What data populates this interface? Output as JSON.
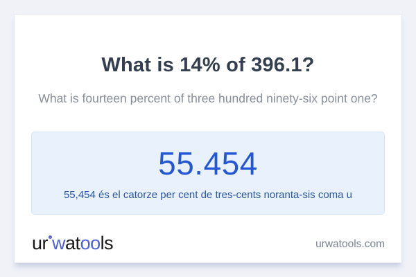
{
  "page": {
    "footer_domain": "urwatools.com"
  },
  "card": {
    "title": "What is 14% of 396.1?",
    "subtitle": "What is fourteen percent of three hundred ninety-six point one?",
    "result": {
      "value": "55.454",
      "description": "55,454 és el catorze per cent de tres-cents noranta-sis coma u"
    },
    "logo": {
      "ur": "ur",
      "w": "w",
      "a": "a",
      "t": "t",
      "oo": "oo",
      "ls": "ls"
    }
  },
  "colors": {
    "bg": "#f0f2f8",
    "card_bg": "#ffffff",
    "card_border": "#e5e7f0",
    "title": "#333e4e",
    "subtitle": "#878d99",
    "result_bg": "#e9f2fc",
    "result_border": "#d6e4f6",
    "result_value": "#2457d5",
    "result_text": "#2a56ab",
    "logo_dark": "#161616",
    "logo_blue": "#4b5fe3",
    "domain_text": "#7c8492"
  }
}
